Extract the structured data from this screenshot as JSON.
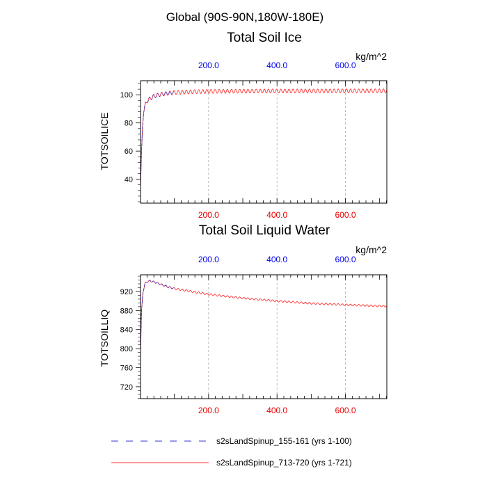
{
  "page_title": "Global (90S-90N,180W-180E)",
  "units": "kg/m^2",
  "colors": {
    "series_a": "#3333cc",
    "series_b": "#ff3333",
    "top_ticks": "#0000ee",
    "bottom_ticks": "#ee0000",
    "grid": "#aaaaaa"
  },
  "legend": [
    {
      "label": "s2sLandSpinup_155-161 (yrs 1-100)",
      "color": "#3333cc",
      "style": "dashed"
    },
    {
      "label": "s2sLandSpinup_713-720 (yrs 1-721)",
      "color": "#ff3333",
      "style": "solid"
    }
  ],
  "chart_data": [
    {
      "type": "line",
      "title": "Total Soil Ice",
      "ylabel": "TOTSOILICE",
      "xlim": [
        1,
        721
      ],
      "ylim": [
        23,
        110
      ],
      "yticks": [
        40,
        60,
        80,
        100
      ],
      "ytick_labels": [
        "40",
        "60",
        "80",
        "100"
      ],
      "xticks": [
        200,
        400,
        600
      ],
      "top_tick_labels": [
        "200.0",
        "400.0",
        "600.0"
      ],
      "bottom_tick_labels": [
        "200.0",
        "400.0",
        "600.0"
      ],
      "series": [
        {
          "name": "s2sLandSpinup_155-161 (yrs 1-100)",
          "x_range": [
            1,
            100
          ],
          "anchors": [
            [
              1,
              34
            ],
            [
              4,
              60
            ],
            [
              7,
              78
            ],
            [
              10,
              88
            ],
            [
              15,
              93
            ],
            [
              20,
              95.5
            ],
            [
              30,
              97.5
            ],
            [
              40,
              99
            ],
            [
              60,
              100.3
            ],
            [
              80,
              101
            ],
            [
              100,
              101.6
            ]
          ],
          "seasonal_amplitude": 1.3
        },
        {
          "name": "s2sLandSpinup_713-720 (yrs 1-721)",
          "x_range": [
            1,
            721
          ],
          "anchors": [
            [
              1,
              34
            ],
            [
              4,
              60
            ],
            [
              7,
              78
            ],
            [
              10,
              88
            ],
            [
              15,
              93
            ],
            [
              20,
              95.5
            ],
            [
              30,
              97.5
            ],
            [
              40,
              99
            ],
            [
              60,
              100.3
            ],
            [
              80,
              101
            ],
            [
              100,
              101.6
            ],
            [
              150,
              102.1
            ],
            [
              200,
              102.4
            ],
            [
              300,
              102.6
            ],
            [
              450,
              102.7
            ],
            [
              721,
              102.8
            ]
          ],
          "seasonal_amplitude": 1.4
        }
      ]
    },
    {
      "type": "line",
      "title": "Total Soil Liquid Water",
      "ylabel": "TOTSOILLIQ",
      "xlim": [
        1,
        721
      ],
      "ylim": [
        695,
        955
      ],
      "yticks": [
        720,
        760,
        800,
        840,
        880,
        920
      ],
      "ytick_labels": [
        "720",
        "760",
        "800",
        "840",
        "880",
        "920"
      ],
      "xticks": [
        200,
        400,
        600
      ],
      "top_tick_labels": [
        "200.0",
        "400.0",
        "600.0"
      ],
      "bottom_tick_labels": [
        "200.0",
        "400.0",
        "600.0"
      ],
      "series": [
        {
          "name": "s2sLandSpinup_155-161 (yrs 1-100)",
          "x_range": [
            1,
            100
          ],
          "anchors": [
            [
              1,
              790
            ],
            [
              4,
              880
            ],
            [
              8,
              918
            ],
            [
              14,
              936
            ],
            [
              20,
              941
            ],
            [
              30,
              942
            ],
            [
              45,
              939
            ],
            [
              60,
              935
            ],
            [
              80,
              930
            ],
            [
              100,
              926
            ]
          ],
          "seasonal_amplitude": 1.6
        },
        {
          "name": "s2sLandSpinup_713-720 (yrs 1-721)",
          "x_range": [
            1,
            721
          ],
          "anchors": [
            [
              1,
              790
            ],
            [
              4,
              880
            ],
            [
              8,
              918
            ],
            [
              14,
              936
            ],
            [
              20,
              941
            ],
            [
              30,
              942
            ],
            [
              45,
              939
            ],
            [
              60,
              935
            ],
            [
              80,
              930
            ],
            [
              100,
              926
            ],
            [
              150,
              920
            ],
            [
              200,
              914
            ],
            [
              300,
              906
            ],
            [
              400,
              900
            ],
            [
              500,
              895
            ],
            [
              600,
              892
            ],
            [
              721,
              889
            ]
          ],
          "seasonal_amplitude": 1.8
        }
      ]
    }
  ]
}
